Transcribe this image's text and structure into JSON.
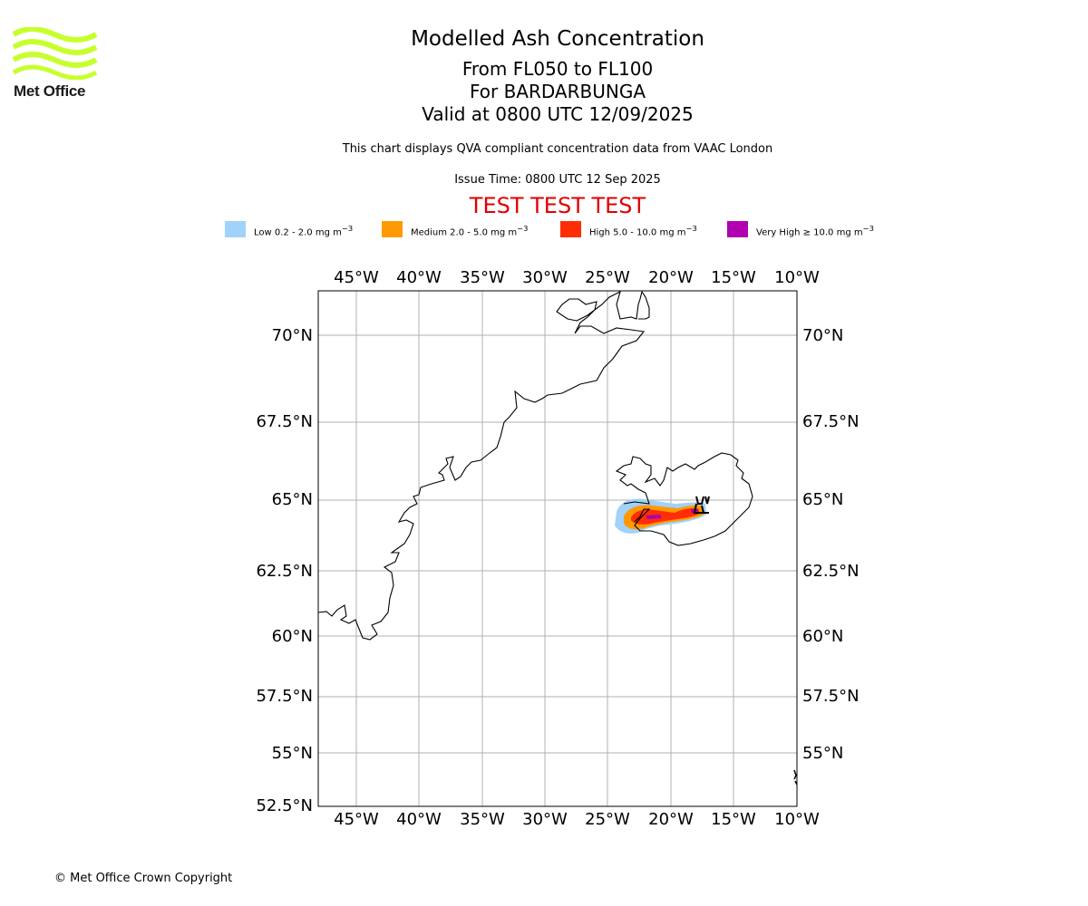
{
  "header": {
    "logo_text": "Met Office",
    "title": "Modelled Ash Concentration",
    "level": "From FL050 to FL100",
    "volcano": "For BARDARBUNGA",
    "valid": "Valid at 0800 UTC 12/09/2025",
    "compliance": "This chart displays QVA compliant concentration data from VAAC London",
    "issue": "Issue Time: 0800 UTC 12 Sep 2025",
    "test_banner": "TEST TEST TEST"
  },
  "legend": {
    "items": [
      {
        "label": "Low 0.2 - 2.0 mg m",
        "sup": "−3",
        "color": "#a0d2fa"
      },
      {
        "label": "Medium 2.0 - 5.0 mg m",
        "sup": "−3",
        "color": "#ff9a05"
      },
      {
        "label": "High 5.0 - 10.0 mg m",
        "sup": "−3",
        "color": "#ff2d05"
      },
      {
        "label": "Very High ≥ 10.0 mg m",
        "sup": "−3",
        "color": "#b000b0"
      }
    ]
  },
  "map": {
    "lon_ticks": [
      "45°W",
      "40°W",
      "35°W",
      "30°W",
      "25°W",
      "20°W",
      "15°W",
      "10°W"
    ],
    "lat_ticks_left": [
      "70°N",
      "67.5°N",
      "65°N",
      "62.5°N",
      "60°N",
      "57.5°N",
      "55°N",
      "52.5°N"
    ],
    "lat_ticks_right": [
      "70°N",
      "67.5°N",
      "65°N",
      "62.5°N",
      "60°N",
      "57.5°N",
      "55°N"
    ],
    "gridlines": true,
    "land_outline_color": "#000000",
    "grid_color": "#b0b0b0"
  },
  "footer": {
    "copyright": "© Met Office Crown Copyright"
  }
}
